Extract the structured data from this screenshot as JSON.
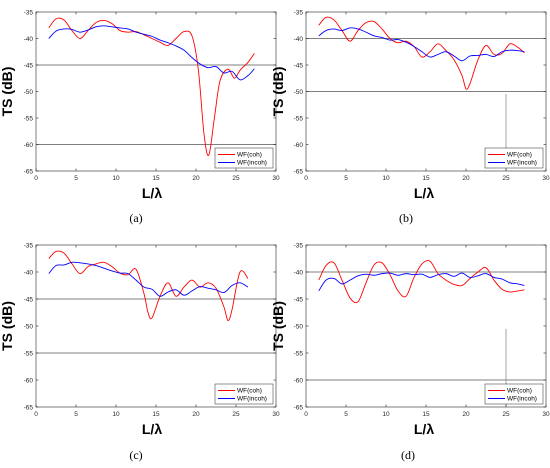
{
  "chart_data": [
    {
      "type": "line",
      "caption": "(a)",
      "xlabel": "L/λ",
      "ylabel": "TS (dB)",
      "xlim": [
        0,
        30
      ],
      "ylim": [
        -65,
        -35
      ],
      "xticks": [
        "0",
        "5",
        "10",
        "15",
        "20",
        "25",
        "30"
      ],
      "yticks": [
        "-35",
        "-40",
        "-45",
        "-50",
        "-55",
        "-60",
        "-65"
      ],
      "grid": false,
      "legend_position": "bottom-right",
      "reference_lines": [
        {
          "y": -45
        },
        {
          "y": -60
        }
      ],
      "series": [
        {
          "name": "WF(coh)",
          "color": "#ff0000",
          "x": [
            1.6,
            2.5,
            3.5,
            4.5,
            5.5,
            6.5,
            7.5,
            8.5,
            9.5,
            10.5,
            11.5,
            12.5,
            13.5,
            14.5,
            15.5,
            16.5,
            17.5,
            18.5,
            19.5,
            20.3,
            21,
            21.6,
            22.3,
            23,
            24,
            24.8,
            25.5,
            26.5,
            27.3
          ],
          "y": [
            -38,
            -36.3,
            -36.5,
            -38.5,
            -40,
            -38.5,
            -37,
            -36.6,
            -37.2,
            -38.5,
            -38.8,
            -38.7,
            -39.3,
            -40,
            -40.7,
            -41.3,
            -40,
            -38.7,
            -39.5,
            -46,
            -58,
            -62,
            -55,
            -48,
            -45.8,
            -47.5,
            -46,
            -44.5,
            -42.8
          ]
        },
        {
          "name": "WF(incoh)",
          "color": "#0000ff",
          "x": [
            1.6,
            2.5,
            3.5,
            4.5,
            5.5,
            6.5,
            7.5,
            8.5,
            9.5,
            10.5,
            11.5,
            12.5,
            13.5,
            14.5,
            15.5,
            16.5,
            17.5,
            18.5,
            19.5,
            20.5,
            21.5,
            22.5,
            23.5,
            24.5,
            25.5,
            26.5,
            27.3
          ],
          "y": [
            -40,
            -38.6,
            -38.2,
            -38.3,
            -38.8,
            -38.4,
            -37.8,
            -37.6,
            -37.8,
            -38,
            -38.2,
            -38.8,
            -39.2,
            -39.6,
            -40.3,
            -40.8,
            -41.4,
            -42.2,
            -43.6,
            -44.8,
            -45.5,
            -45.3,
            -46.5,
            -46.2,
            -47.8,
            -47,
            -45.7
          ]
        }
      ]
    },
    {
      "type": "line",
      "caption": "(b)",
      "xlabel": "L/λ",
      "ylabel": "TS (dB)",
      "xlim": [
        0,
        30
      ],
      "ylim": [
        -65,
        -35
      ],
      "xticks": [
        "0",
        "5",
        "10",
        "15",
        "20",
        "25",
        "30"
      ],
      "yticks": [
        "-35",
        "-40",
        "-45",
        "-50",
        "-55",
        "-60",
        "-65"
      ],
      "grid": false,
      "legend_position": "bottom-right",
      "reference_lines": [
        {
          "y": -40
        },
        {
          "y": -50
        },
        {
          "x": 25
        }
      ],
      "series": [
        {
          "name": "WF(coh)",
          "color": "#ff0000",
          "x": [
            1.6,
            2.5,
            3.5,
            4.5,
            5.5,
            6.5,
            7.5,
            8.5,
            9.5,
            10.5,
            11.5,
            12.5,
            13.5,
            14.5,
            15.5,
            16.5,
            17.5,
            18.5,
            19.5,
            20,
            20.5,
            21.5,
            22.5,
            23.5,
            24.5,
            25.5,
            26.5,
            27.3
          ],
          "y": [
            -37.5,
            -36,
            -36.5,
            -38.5,
            -40.5,
            -38.5,
            -37,
            -36.8,
            -38.2,
            -40,
            -40.8,
            -40.5,
            -41.5,
            -43.5,
            -42.5,
            -41,
            -42.3,
            -44,
            -47,
            -49.5,
            -48.5,
            -44,
            -41.3,
            -43,
            -42.8,
            -41,
            -41.7,
            -42.7
          ]
        },
        {
          "name": "WF(incoh)",
          "color": "#0000ff",
          "x": [
            1.6,
            2.5,
            3.5,
            4.5,
            5.5,
            6.5,
            7.5,
            8.5,
            9.5,
            10.5,
            11.5,
            12.5,
            13.5,
            14.5,
            15.5,
            16.5,
            17.5,
            18.5,
            19.5,
            20.5,
            21.5,
            22.5,
            23.5,
            24.5,
            25.5,
            26.5,
            27.3
          ],
          "y": [
            -39.5,
            -38.5,
            -38.2,
            -38.5,
            -38,
            -38.2,
            -38.8,
            -39.5,
            -39.8,
            -40.3,
            -40.2,
            -40.7,
            -41.5,
            -42.5,
            -43.5,
            -43,
            -42.5,
            -43.3,
            -44.2,
            -43.3,
            -43.2,
            -43,
            -43.4,
            -42.5,
            -42.2,
            -42.3,
            -42.5
          ]
        }
      ]
    },
    {
      "type": "line",
      "caption": "(c)",
      "xlabel": "L/λ",
      "ylabel": "TS (dB)",
      "xlim": [
        0,
        30
      ],
      "ylim": [
        -65,
        -35
      ],
      "xticks": [
        "0",
        "5",
        "10",
        "15",
        "20",
        "25",
        "30"
      ],
      "yticks": [
        "-35",
        "-40",
        "-45",
        "-50",
        "-55",
        "-60",
        "-65"
      ],
      "grid": false,
      "legend_position": "bottom-right",
      "reference_lines": [
        {
          "y": -45
        },
        {
          "y": -55
        }
      ],
      "series": [
        {
          "name": "WF(coh)",
          "color": "#ff0000",
          "x": [
            1.6,
            2.5,
            3.5,
            4.5,
            5.5,
            6.5,
            7.5,
            8.5,
            9.5,
            10.5,
            11.5,
            12.5,
            13.5,
            14,
            14.5,
            15.5,
            16.5,
            17.5,
            18.5,
            19.5,
            20.5,
            21.5,
            22.5,
            23.5,
            24,
            24.5,
            25.5,
            26.5
          ],
          "y": [
            -37.5,
            -36.2,
            -36.5,
            -38.5,
            -40.3,
            -39,
            -38.5,
            -38.2,
            -39,
            -40.2,
            -40.5,
            -39.5,
            -44,
            -47.5,
            -48.5,
            -44.5,
            -42,
            -44.5,
            -42.8,
            -41.5,
            -42.8,
            -42,
            -43,
            -46.5,
            -49,
            -47,
            -40,
            -41.2
          ]
        },
        {
          "name": "WF(incoh)",
          "color": "#0000ff",
          "x": [
            1.6,
            2.5,
            3.5,
            4.5,
            5.5,
            6.5,
            7.5,
            8.5,
            9.5,
            10.5,
            11.5,
            12.5,
            13.5,
            14.5,
            15.5,
            16.5,
            17.5,
            18.5,
            19.5,
            20.5,
            21.5,
            22.5,
            23.5,
            24.5,
            25.5,
            26.5
          ],
          "y": [
            -40.3,
            -38.8,
            -38.7,
            -38.2,
            -38.3,
            -38.5,
            -38.8,
            -39.3,
            -39.8,
            -40.2,
            -40.3,
            -41.5,
            -42.8,
            -43.2,
            -44.5,
            -43.7,
            -43.3,
            -44.3,
            -43.5,
            -42.7,
            -43,
            -43.3,
            -43.8,
            -42.5,
            -42,
            -42.8
          ]
        }
      ]
    },
    {
      "type": "line",
      "caption": "(d)",
      "xlabel": "L/λ",
      "ylabel": "TS (dB)",
      "xlim": [
        0,
        30
      ],
      "ylim": [
        -65,
        -35
      ],
      "xticks": [
        "0",
        "5",
        "10",
        "15",
        "20",
        "25",
        "30"
      ],
      "yticks": [
        "-35",
        "-40",
        "-45",
        "-50",
        "-55",
        "-60",
        "-65"
      ],
      "grid": false,
      "legend_position": "bottom-right",
      "reference_lines": [
        {
          "y": -40
        },
        {
          "y": -60
        },
        {
          "x": 25
        }
      ],
      "series": [
        {
          "name": "WF(coh)",
          "color": "#ff0000",
          "x": [
            1.6,
            2.5,
            3.5,
            4.5,
            5.5,
            6.5,
            7.5,
            8.5,
            9.5,
            10.5,
            11.5,
            12.5,
            13.5,
            14.5,
            15.5,
            16.5,
            17.5,
            18.5,
            19.5,
            20.5,
            21.5,
            22.5,
            23.5,
            24.5,
            25.5,
            26.5,
            27.3
          ],
          "y": [
            -41.5,
            -38.8,
            -38.3,
            -41.5,
            -44.8,
            -45.5,
            -42,
            -38.7,
            -38.3,
            -40.5,
            -43.5,
            -44.5,
            -41,
            -38.5,
            -38,
            -40.3,
            -41.5,
            -42.3,
            -42.5,
            -41.2,
            -40,
            -39.2,
            -41.5,
            -43.2,
            -43.7,
            -43.5,
            -43.3
          ]
        },
        {
          "name": "WF(incoh)",
          "color": "#0000ff",
          "x": [
            1.6,
            2.5,
            3.5,
            4.5,
            5.5,
            6.5,
            7.5,
            8.5,
            9.5,
            10.5,
            11.5,
            12.5,
            13.5,
            14.5,
            15.5,
            16.5,
            17.5,
            18.5,
            19.5,
            20.5,
            21.5,
            22.5,
            23.5,
            24.5,
            25.5,
            26.5,
            27.3
          ],
          "y": [
            -43.5,
            -41.5,
            -41.2,
            -42.2,
            -41.5,
            -40.7,
            -40.4,
            -40.6,
            -40.3,
            -40.2,
            -40.6,
            -40.3,
            -40.5,
            -40.4,
            -41,
            -40.5,
            -40.3,
            -40.8,
            -40.2,
            -41,
            -40.7,
            -40.3,
            -41,
            -41.3,
            -42,
            -42.2,
            -42.5
          ]
        }
      ]
    }
  ]
}
